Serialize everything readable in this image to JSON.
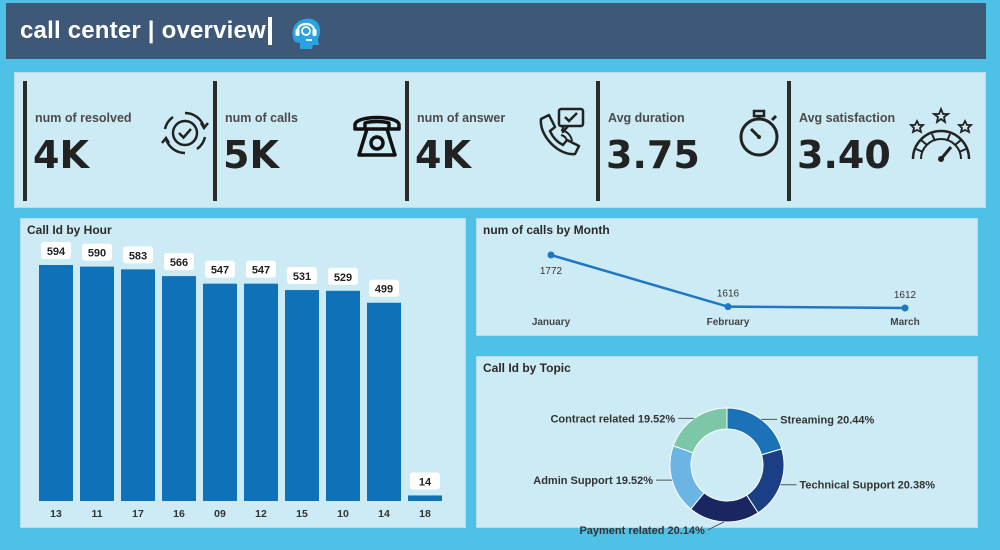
{
  "header": {
    "title": "call center | overview",
    "icon": "agent-headset-icon"
  },
  "kpis": [
    {
      "label": "num of resolved",
      "value": "4K",
      "icon": "resolved-gear-check-icon"
    },
    {
      "label": "num of calls",
      "value": "5K",
      "icon": "telephone-icon"
    },
    {
      "label": "num of answer",
      "value": "4K",
      "icon": "phone-answer-chat-icon"
    },
    {
      "label": "Avg duration",
      "value": "3.75",
      "icon": "stopwatch-icon"
    },
    {
      "label": "Avg satisfaction",
      "value": "3.40",
      "icon": "satisfaction-gauge-stars-icon"
    }
  ],
  "chart_data": [
    {
      "type": "bar",
      "title": "Call Id by Hour",
      "categories": [
        "13",
        "11",
        "17",
        "16",
        "09",
        "12",
        "15",
        "10",
        "14",
        "18"
      ],
      "values": [
        594,
        590,
        583,
        566,
        547,
        547,
        531,
        529,
        499,
        14
      ],
      "ylim": [
        0,
        594
      ],
      "color": "#0f72b8",
      "grid": false
    },
    {
      "type": "line",
      "title": "num of calls by Month",
      "x": [
        "January",
        "February",
        "March"
      ],
      "values": [
        1772,
        1616,
        1612
      ],
      "color": "#1f77c4",
      "grid": false
    },
    {
      "type": "pie",
      "title": "Call Id by Topic",
      "donut": true,
      "slices": [
        {
          "label": "Streaming 20.44%",
          "value": 20.44,
          "color": "#1b72b8"
        },
        {
          "label": "Technical Support 20.38%",
          "value": 20.38,
          "color": "#1a3f84"
        },
        {
          "label": "Payment related 20.14%",
          "value": 20.14,
          "color": "#1a2660"
        },
        {
          "label": "Admin Support 19.52%",
          "value": 19.52,
          "color": "#6bb4e3"
        },
        {
          "label": "Contract related 19.52%",
          "value": 19.52,
          "color": "#7cc7a8"
        }
      ]
    }
  ]
}
